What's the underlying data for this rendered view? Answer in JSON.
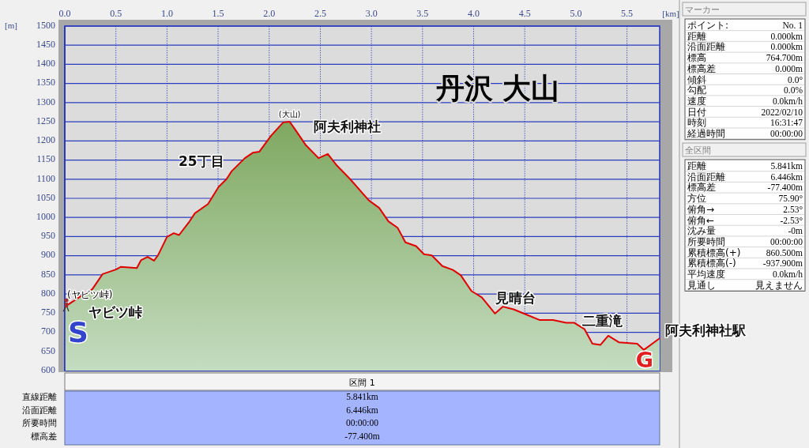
{
  "chart_data": [
    {
      "type": "area",
      "title": "丹沢 大山",
      "xlabel": "[km]",
      "ylabel": "[m]",
      "xlim": [
        0,
        5.82
      ],
      "ylim": [
        600,
        1500
      ],
      "xticks": [
        {
          "value": 0,
          "label": "0.0"
        },
        {
          "value": 0.5,
          "label": "0.5"
        },
        {
          "value": 1,
          "label": "1.0"
        },
        {
          "value": 1.5,
          "label": "1.5"
        },
        {
          "value": 2,
          "label": "2.0"
        },
        {
          "value": 2.5,
          "label": "2.5"
        },
        {
          "value": 3,
          "label": "3.0"
        },
        {
          "value": 3.5,
          "label": "3.5"
        },
        {
          "value": 4,
          "label": "4.0"
        },
        {
          "value": 4.5,
          "label": "4.5"
        },
        {
          "value": 5,
          "label": "5.0"
        },
        {
          "value": 5.5,
          "label": "5.5"
        }
      ],
      "yticks": [
        600,
        650,
        700,
        750,
        800,
        850,
        900,
        950,
        1000,
        1050,
        1100,
        1150,
        1200,
        1250,
        1300,
        1350,
        1400,
        1450,
        1500
      ],
      "grid": true,
      "series": [
        {
          "color": "#e00000",
          "x": [
            0,
            0.02,
            0.165,
            0.27,
            0.37,
            0.5,
            0.55,
            0.705,
            0.745,
            0.81,
            0.873,
            0.912,
            1.0,
            1.066,
            1.118,
            1.221,
            1.273,
            1.401,
            1.505,
            1.582,
            1.633,
            1.762,
            1.839,
            1.904,
            2.019,
            2.135,
            2.2,
            2.251,
            2.355,
            2.483,
            2.573,
            2.664,
            2.792,
            2.973,
            3.076,
            3.166,
            3.256,
            3.333,
            3.437,
            3.514,
            3.591,
            3.694,
            3.797,
            3.874,
            3.978,
            4.08,
            4.209,
            4.287,
            4.39,
            4.518,
            4.647,
            4.776,
            4.905,
            4.982,
            5.085,
            5.162,
            5.24,
            5.317,
            5.42,
            5.6,
            5.664,
            5.819
          ],
          "values": [
            765,
            770,
            796,
            813,
            852,
            864,
            871,
            868,
            888,
            897,
            887,
            901,
            949,
            959,
            954,
            990,
            1011,
            1035,
            1080,
            1100,
            1121,
            1155,
            1169,
            1172,
            1214,
            1248,
            1250,
            1231,
            1190,
            1155,
            1166,
            1135,
            1100,
            1045,
            1025,
            990,
            973,
            935,
            925,
            904,
            901,
            873,
            863,
            849,
            808,
            791,
            749,
            767,
            760,
            746,
            732,
            732,
            725,
            725,
            708,
            670,
            667,
            691,
            674,
            670,
            654,
            684
          ]
        }
      ],
      "annotations": [
        {
          "text": "(大山)",
          "x": 2.2,
          "y": 1250
        },
        {
          "text": "阿夫利神社",
          "x": 2.2,
          "y": 1250
        },
        {
          "text": "25丁目",
          "x": 1.762,
          "y": 1155
        },
        {
          "text": "見晴台",
          "x": 4.209,
          "y": 749
        },
        {
          "text": "二重滝",
          "x": 4.982,
          "y": 725
        },
        {
          "text": "阿夫利神社駅",
          "x": 5.819,
          "y": 684
        },
        {
          "text": "(ヤビツ峠)",
          "x": 0,
          "y": 764.7
        },
        {
          "text": "ヤビツ峠",
          "x": 0,
          "y": 764.7
        },
        {
          "text": "S",
          "x": 0,
          "y": 764.7
        },
        {
          "text": "G",
          "x": 5.819,
          "y": 684
        }
      ]
    },
    {
      "type": "other",
      "title": "マーカー",
      "annotations": [
        "ポイント:",
        "No. 1",
        "距離",
        "0.000km",
        "沿面距離",
        "0.000km",
        "標高",
        "764.700m",
        "標高差",
        "0.000m",
        "傾斜",
        "0.0°",
        "勾配",
        "0.0%",
        "速度",
        "0.0km/h",
        "日付",
        "2022/02/10",
        "時刻",
        "16:31:47",
        "経過時間",
        "00:00:00"
      ]
    },
    {
      "type": "other",
      "title": "全区間",
      "annotations": [
        "距離",
        "5.841km",
        "沿面距離",
        "6.446km",
        "標高差",
        "-77.400m",
        "方位",
        "75.90°",
        "俯角→",
        "2.53°",
        "俯角←",
        "-2.53°",
        "沈み量",
        "-0m",
        "所要時間",
        "00:00:00",
        "累積標高(+)",
        "860.500m",
        "累積標高(-)",
        "-937.900m",
        "平均速度",
        "0.0km/h",
        "見通し",
        "見えません"
      ]
    },
    {
      "type": "other",
      "title": "区間 1",
      "annotations": [
        "直線距離",
        "5.841km",
        "沿面距離",
        "6.446km",
        "所要時間",
        "00:00:00",
        "標高差",
        "-77.400m"
      ]
    }
  ]
}
